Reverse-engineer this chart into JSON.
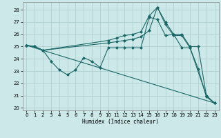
{
  "xlabel": "Humidex (Indice chaleur)",
  "bg_color": "#cce8e8",
  "grid_color": "#aacccc",
  "line_color": "#1a6666",
  "ylim": [
    19.8,
    28.6
  ],
  "xlim": [
    -0.5,
    23.5
  ],
  "yticks": [
    20,
    21,
    22,
    23,
    24,
    25,
    26,
    27,
    28
  ],
  "xticks": [
    0,
    1,
    2,
    3,
    4,
    5,
    6,
    7,
    8,
    9,
    10,
    11,
    12,
    13,
    14,
    15,
    16,
    17,
    18,
    19,
    20,
    21,
    22,
    23
  ],
  "series": [
    {
      "x": [
        0,
        1,
        2,
        3,
        4,
        5,
        6,
        7,
        8,
        9,
        10,
        11,
        12,
        13,
        14,
        15,
        16,
        17,
        18,
        19,
        20,
        21,
        22,
        23
      ],
      "y": [
        25.1,
        25.0,
        24.7,
        23.8,
        23.1,
        22.7,
        23.1,
        24.1,
        23.8,
        23.3,
        24.9,
        24.9,
        24.9,
        24.9,
        24.9,
        27.4,
        27.2,
        25.9,
        26.0,
        24.9,
        24.9,
        23.2,
        20.9,
        20.4
      ],
      "marker": "D",
      "markersize": 2,
      "linewidth": 0.8,
      "has_marker": true
    },
    {
      "x": [
        0,
        1,
        2,
        10,
        11,
        12,
        13,
        14,
        15,
        16,
        17,
        18,
        19,
        20,
        21,
        22,
        23
      ],
      "y": [
        25.1,
        25.0,
        24.7,
        25.5,
        25.7,
        25.9,
        26.0,
        26.2,
        27.5,
        28.2,
        27.0,
        26.0,
        26.0,
        25.0,
        25.0,
        21.0,
        20.4
      ],
      "marker": "D",
      "markersize": 2,
      "linewidth": 0.8,
      "has_marker": true
    },
    {
      "x": [
        0,
        23
      ],
      "y": [
        25.1,
        20.4
      ],
      "marker": null,
      "markersize": 0,
      "linewidth": 0.8,
      "has_marker": false
    },
    {
      "x": [
        0,
        1,
        2,
        10,
        11,
        12,
        13,
        14,
        15,
        16,
        17,
        18,
        19,
        20,
        22,
        23
      ],
      "y": [
        25.1,
        25.0,
        24.7,
        25.3,
        25.4,
        25.5,
        25.6,
        25.8,
        26.3,
        28.2,
        26.8,
        25.9,
        25.9,
        24.9,
        21.0,
        20.4
      ],
      "marker": "D",
      "markersize": 2,
      "linewidth": 0.8,
      "has_marker": true
    }
  ]
}
